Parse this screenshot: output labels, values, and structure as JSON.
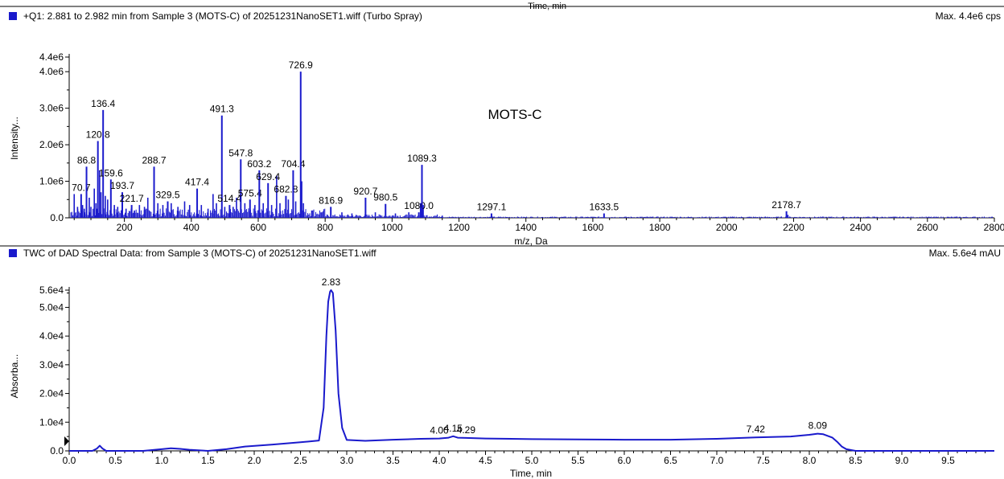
{
  "top_cut_label": "Time, min",
  "colors": {
    "trace": "#1a1acc",
    "axis": "#000000",
    "marker": "#1a1acc"
  },
  "ms_panel": {
    "header": "+Q1: 2.881 to 2.982 min from Sample 3 (MOTS-C) of 20251231NanoSET1.wiff (Turbo Spray)",
    "max_label": "Max. 4.4e6 cps",
    "annotation": "MOTS-C"
  },
  "uv_panel": {
    "header": "TWC of DAD Spectral Data: from Sample 3 (MOTS-C) of 20251231NanoSET1.wiff",
    "max_label": "Max. 5.6e4 mAU"
  },
  "chart_data": [
    {
      "type": "bar",
      "xlabel": "m/z, Da",
      "ylabel": "Intensity...",
      "xlim": [
        35,
        2800
      ],
      "ylim": [
        0,
        4400000.0
      ],
      "x_ticks": [
        200,
        400,
        600,
        800,
        1000,
        1200,
        1400,
        1600,
        1800,
        2000,
        2200,
        2400,
        2600,
        2800
      ],
      "x_tick_labels": [
        "200",
        "400",
        "600",
        "800",
        "1000",
        "1200",
        "1400",
        "1600",
        "1800",
        "2000",
        "2200",
        "2400",
        "2600",
        "2800"
      ],
      "y_ticks": [
        0,
        1000000.0,
        2000000.0,
        3000000.0,
        4000000.0,
        4400000.0
      ],
      "y_tick_labels": [
        "0.0",
        "1.0e6",
        "2.0e6",
        "3.0e6",
        "4.0e6",
        "4.4e6"
      ],
      "labeled_peaks": [
        {
          "mz": 70.7,
          "intensity": 650000,
          "label": "70.7"
        },
        {
          "mz": 86.8,
          "intensity": 1400000,
          "label": "86.8"
        },
        {
          "mz": 120.8,
          "intensity": 2100000,
          "label": "120.8"
        },
        {
          "mz": 136.4,
          "intensity": 2950000,
          "label": "136.4"
        },
        {
          "mz": 159.6,
          "intensity": 1050000,
          "label": "159.6"
        },
        {
          "mz": 193.7,
          "intensity": 700000,
          "label": "193.7"
        },
        {
          "mz": 221.7,
          "intensity": 350000,
          "label": "221.7"
        },
        {
          "mz": 288.7,
          "intensity": 1400000,
          "label": "288.7"
        },
        {
          "mz": 329.5,
          "intensity": 450000,
          "label": "329.5"
        },
        {
          "mz": 417.4,
          "intensity": 800000,
          "label": "417.4"
        },
        {
          "mz": 491.3,
          "intensity": 2800000,
          "label": "491.3"
        },
        {
          "mz": 514.4,
          "intensity": 350000,
          "label": "514.4"
        },
        {
          "mz": 547.8,
          "intensity": 1600000,
          "label": "547.8"
        },
        {
          "mz": 575.4,
          "intensity": 500000,
          "label": "575.4"
        },
        {
          "mz": 603.2,
          "intensity": 1300000,
          "label": "603.2"
        },
        {
          "mz": 629.4,
          "intensity": 950000,
          "label": "629.4"
        },
        {
          "mz": 682.8,
          "intensity": 600000,
          "label": "682.8"
        },
        {
          "mz": 704.4,
          "intensity": 1300000,
          "label": "704.4"
        },
        {
          "mz": 726.9,
          "intensity": 4000000,
          "label": "726.9"
        },
        {
          "mz": 816.9,
          "intensity": 300000,
          "label": "816.9"
        },
        {
          "mz": 920.7,
          "intensity": 550000,
          "label": "920.7"
        },
        {
          "mz": 980.5,
          "intensity": 380000,
          "label": "980.5"
        },
        {
          "mz": 1080.0,
          "intensity": 150000,
          "label": "1080.0"
        },
        {
          "mz": 1089.3,
          "intensity": 1450000,
          "label": "1089.3"
        },
        {
          "mz": 1297.1,
          "intensity": 120000,
          "label": "1297.1"
        },
        {
          "mz": 1633.5,
          "intensity": 120000,
          "label": "1633.5"
        },
        {
          "mz": 2178.7,
          "intensity": 180000,
          "label": "2178.7"
        }
      ],
      "minor_peaks": [
        {
          "mz": 50,
          "intensity": 650000
        },
        {
          "mz": 60,
          "intensity": 300000
        },
        {
          "mz": 75,
          "intensity": 350000
        },
        {
          "mz": 80,
          "intensity": 250000
        },
        {
          "mz": 95,
          "intensity": 550000
        },
        {
          "mz": 100,
          "intensity": 300000
        },
        {
          "mz": 110,
          "intensity": 800000
        },
        {
          "mz": 115,
          "intensity": 400000
        },
        {
          "mz": 126,
          "intensity": 1300000
        },
        {
          "mz": 130,
          "intensity": 700000
        },
        {
          "mz": 143,
          "intensity": 600000
        },
        {
          "mz": 150,
          "intensity": 500000
        },
        {
          "mz": 170,
          "intensity": 350000
        },
        {
          "mz": 180,
          "intensity": 300000
        },
        {
          "mz": 205,
          "intensity": 250000
        },
        {
          "mz": 230,
          "intensity": 200000
        },
        {
          "mz": 245,
          "intensity": 350000
        },
        {
          "mz": 260,
          "intensity": 300000
        },
        {
          "mz": 270,
          "intensity": 550000
        },
        {
          "mz": 300,
          "intensity": 400000
        },
        {
          "mz": 315,
          "intensity": 350000
        },
        {
          "mz": 340,
          "intensity": 400000
        },
        {
          "mz": 360,
          "intensity": 300000
        },
        {
          "mz": 380,
          "intensity": 450000
        },
        {
          "mz": 395,
          "intensity": 350000
        },
        {
          "mz": 430,
          "intensity": 350000
        },
        {
          "mz": 450,
          "intensity": 250000
        },
        {
          "mz": 465,
          "intensity": 650000
        },
        {
          "mz": 475,
          "intensity": 400000
        },
        {
          "mz": 500,
          "intensity": 300000
        },
        {
          "mz": 525,
          "intensity": 300000
        },
        {
          "mz": 535,
          "intensity": 550000
        },
        {
          "mz": 560,
          "intensity": 400000
        },
        {
          "mz": 590,
          "intensity": 350000
        },
        {
          "mz": 615,
          "intensity": 400000
        },
        {
          "mz": 640,
          "intensity": 350000
        },
        {
          "mz": 655,
          "intensity": 1150000
        },
        {
          "mz": 665,
          "intensity": 400000
        },
        {
          "mz": 690,
          "intensity": 500000
        },
        {
          "mz": 712,
          "intensity": 450000
        },
        {
          "mz": 730,
          "intensity": 1000000
        },
        {
          "mz": 735,
          "intensity": 400000
        },
        {
          "mz": 760,
          "intensity": 200000
        },
        {
          "mz": 790,
          "intensity": 150000
        },
        {
          "mz": 850,
          "intensity": 150000
        },
        {
          "mz": 880,
          "intensity": 120000
        },
        {
          "mz": 950,
          "intensity": 150000
        },
        {
          "mz": 1010,
          "intensity": 120000
        },
        {
          "mz": 1050,
          "intensity": 150000
        },
        {
          "mz": 1085,
          "intensity": 400000
        },
        {
          "mz": 1093,
          "intensity": 350000
        },
        {
          "mz": 1150,
          "intensity": 60000
        },
        {
          "mz": 2183,
          "intensity": 80000
        }
      ]
    },
    {
      "type": "line",
      "xlabel": "Time, min",
      "ylabel": "Absorba...",
      "xlim": [
        0.0,
        10.0
      ],
      "ylim": [
        0,
        56000.0
      ],
      "x_ticks": [
        0.0,
        0.5,
        1.0,
        1.5,
        2.0,
        2.5,
        3.0,
        3.5,
        4.0,
        4.5,
        5.0,
        5.5,
        6.0,
        6.5,
        7.0,
        7.5,
        8.0,
        8.5,
        9.0,
        9.5
      ],
      "x_tick_labels": [
        "0.0",
        "0.5",
        "1.0",
        "1.5",
        "2.0",
        "2.5",
        "3.0",
        "3.5",
        "4.0",
        "4.5",
        "5.0",
        "5.5",
        "6.0",
        "6.5",
        "7.0",
        "7.5",
        "8.0",
        "8.5",
        "9.0",
        "9.5"
      ],
      "y_ticks": [
        0,
        10000.0,
        20000.0,
        30000.0,
        40000.0,
        50000.0,
        56000.0
      ],
      "y_tick_labels": [
        "0.0",
        "1.0e4",
        "2.0e4",
        "3.0e4",
        "4.0e4",
        "5.0e4",
        "5.6e4"
      ],
      "x": [
        0.0,
        0.25,
        0.3,
        0.33,
        0.36,
        0.4,
        0.5,
        0.8,
        1.0,
        1.1,
        1.2,
        1.3,
        1.5,
        1.7,
        1.9,
        2.2,
        2.5,
        2.7,
        2.75,
        2.78,
        2.8,
        2.82,
        2.83,
        2.85,
        2.88,
        2.91,
        2.95,
        3.0,
        3.2,
        3.5,
        3.8,
        4.0,
        4.1,
        4.15,
        4.2,
        4.29,
        4.5,
        5.0,
        5.5,
        6.0,
        6.5,
        7.0,
        7.42,
        7.8,
        8.0,
        8.09,
        8.15,
        8.25,
        8.3,
        8.35,
        8.4,
        8.5,
        9.0,
        9.5,
        10.0
      ],
      "y": [
        0,
        0,
        800,
        1800,
        800,
        0,
        0,
        0,
        600,
        900,
        700,
        400,
        0,
        600,
        1500,
        2200,
        3000,
        3600,
        15000,
        40000,
        52000,
        55500,
        56000,
        55000,
        42000,
        20000,
        8000,
        3800,
        3500,
        3900,
        4200,
        4300,
        4600,
        5100,
        4600,
        4500,
        4300,
        4100,
        4000,
        3900,
        3900,
        4200,
        4700,
        5000,
        5600,
        6000,
        5800,
        4600,
        3200,
        1500,
        600,
        0,
        0,
        0,
        0
      ],
      "peak_labels": [
        {
          "t": 2.83,
          "y": 56000,
          "label": "2.83"
        },
        {
          "t": 4.0,
          "y": 4300,
          "label": "4.00"
        },
        {
          "t": 4.15,
          "y": 5100,
          "label": "4.15"
        },
        {
          "t": 4.29,
          "y": 4500,
          "label": "4.29"
        },
        {
          "t": 7.42,
          "y": 4700,
          "label": "7.42"
        },
        {
          "t": 8.09,
          "y": 6000,
          "label": "8.09"
        }
      ]
    }
  ]
}
